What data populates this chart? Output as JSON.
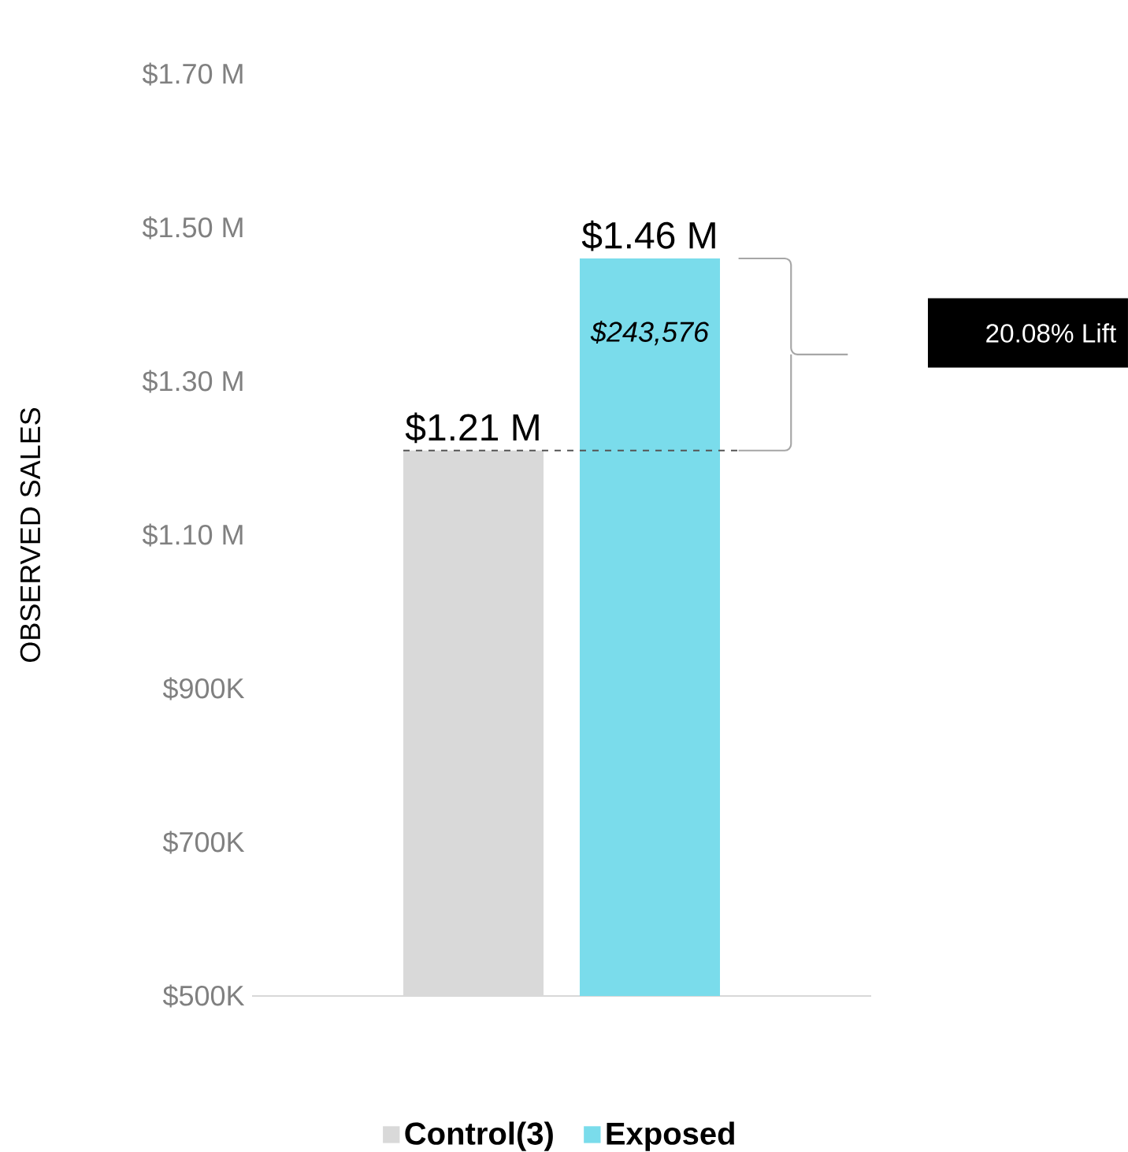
{
  "chart_data": {
    "type": "bar",
    "ylabel": "OBSERVED SALES",
    "categories": [
      null
    ],
    "series": [
      {
        "name": "Control(3)",
        "color": "#d9d9d9",
        "values": [
          1210000
        ],
        "value_labels": [
          "$1.21 M"
        ]
      },
      {
        "name": "Exposed",
        "color": "#7adceb",
        "values": [
          1460000
        ],
        "value_labels": [
          "$1.46 M"
        ]
      }
    ],
    "ylim": [
      500000,
      1700000
    ],
    "yticks": [
      {
        "value": 500000,
        "label": "$500K"
      },
      {
        "value": 700000,
        "label": "$700K"
      },
      {
        "value": 900000,
        "label": "$900K"
      },
      {
        "value": 1100000,
        "label": "$1.10 M"
      },
      {
        "value": 1300000,
        "label": "$1.30 M"
      },
      {
        "value": 1500000,
        "label": "$1.50 M"
      },
      {
        "value": 1700000,
        "label": "$1.70 M"
      }
    ],
    "ref_lines": [
      {
        "axis": "y",
        "value": 1210000,
        "color": "#555555",
        "line_style": "dashed"
      }
    ],
    "annotations": [
      "$243,576",
      "20.08% Lift"
    ],
    "legend": "bottom",
    "grid": false
  }
}
